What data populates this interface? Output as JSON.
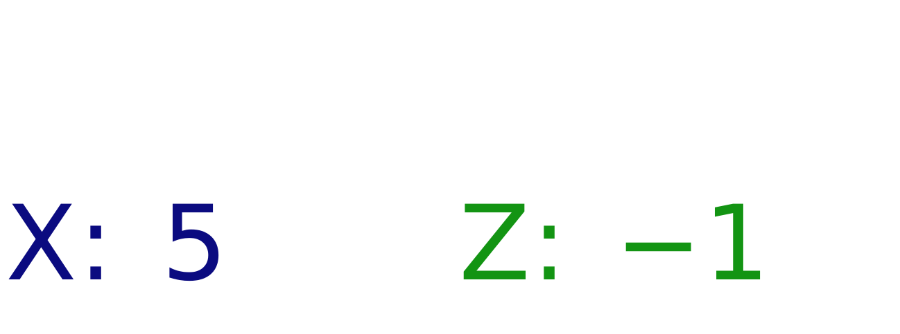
{
  "readouts": {
    "x": {
      "label": "X",
      "separator": ":",
      "value": "5",
      "color": "#0b0b80"
    },
    "z": {
      "label": "Z",
      "separator": ":",
      "value": "−1",
      "color": "#139413"
    }
  }
}
